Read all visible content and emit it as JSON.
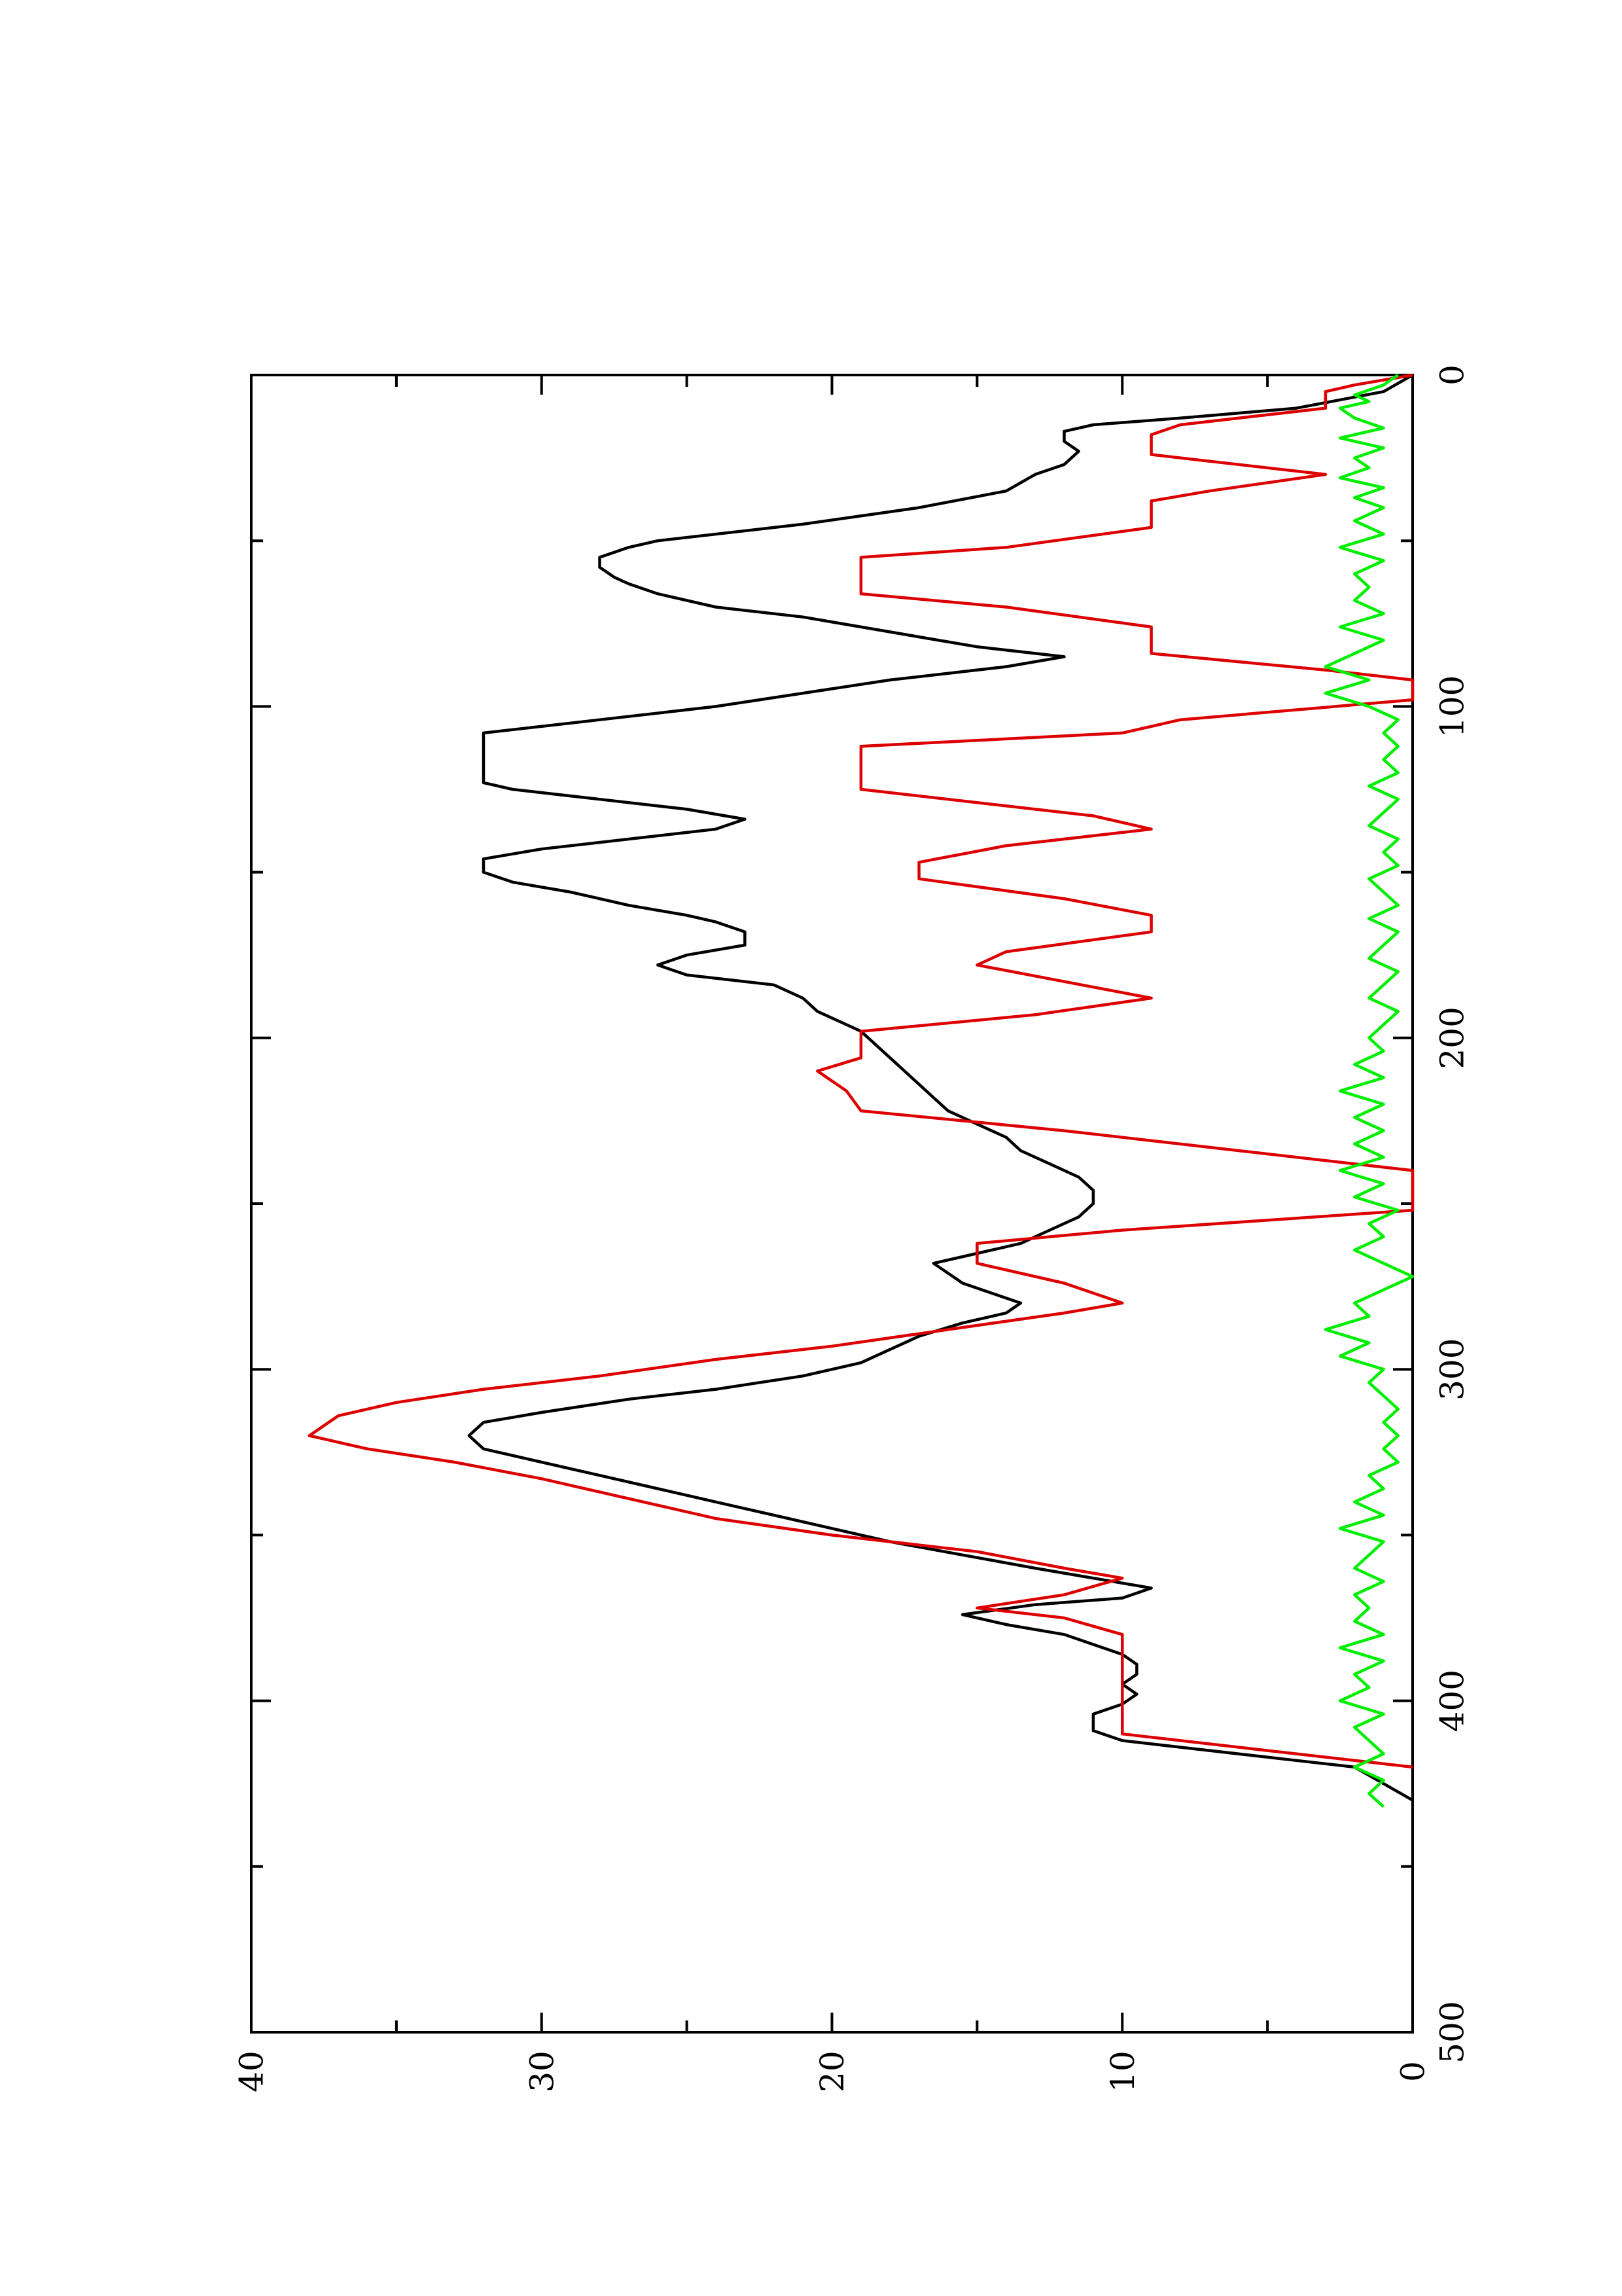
{
  "chart_data": {
    "type": "line",
    "rotated": "90-degrees-counterclockwise",
    "title": "",
    "xlabel": "",
    "ylabel": "",
    "xlim": [
      0,
      500
    ],
    "ylim": [
      0,
      40
    ],
    "x_ticks": [
      0,
      100,
      200,
      300,
      400,
      500
    ],
    "x_minor_ticks": [
      50,
      150,
      250,
      350,
      450
    ],
    "y_ticks": [
      0,
      10,
      20,
      30,
      40
    ],
    "y_minor_ticks": [
      5,
      15,
      25,
      35
    ],
    "x_tick_labels": [
      "0",
      "100",
      "200",
      "300",
      "400",
      "500"
    ],
    "y_tick_labels": [
      "0",
      "10",
      "20",
      "30",
      "40"
    ],
    "grid": false,
    "legend": "none",
    "series": [
      {
        "color": "#000000",
        "points": [
          [
            0,
            0
          ],
          [
            5,
            1
          ],
          [
            10,
            4
          ],
          [
            13,
            8
          ],
          [
            15,
            11
          ],
          [
            17,
            12
          ],
          [
            20,
            12
          ],
          [
            23,
            11.5
          ],
          [
            27,
            12
          ],
          [
            30,
            13
          ],
          [
            35,
            14
          ],
          [
            40,
            17
          ],
          [
            45,
            21
          ],
          [
            50,
            26
          ],
          [
            52,
            27
          ],
          [
            55,
            28
          ],
          [
            58,
            28
          ],
          [
            61,
            27.5
          ],
          [
            63,
            27
          ],
          [
            66,
            26
          ],
          [
            70,
            24
          ],
          [
            73,
            21
          ],
          [
            76,
            19
          ],
          [
            79,
            17
          ],
          [
            82,
            15
          ],
          [
            85,
            12
          ],
          [
            88,
            14
          ],
          [
            92,
            18
          ],
          [
            96,
            21
          ],
          [
            100,
            24
          ],
          [
            104,
            28
          ],
          [
            108,
            32
          ],
          [
            113,
            32
          ],
          [
            118,
            32
          ],
          [
            123,
            32
          ],
          [
            125,
            31
          ],
          [
            128,
            28
          ],
          [
            131,
            25
          ],
          [
            134,
            23
          ],
          [
            137,
            24
          ],
          [
            140,
            27
          ],
          [
            143,
            30
          ],
          [
            146,
            32
          ],
          [
            150,
            32
          ],
          [
            153,
            31
          ],
          [
            156,
            29
          ],
          [
            160,
            27
          ],
          [
            163,
            25
          ],
          [
            165,
            24
          ],
          [
            168,
            23
          ],
          [
            172,
            23
          ],
          [
            175,
            25
          ],
          [
            178,
            26
          ],
          [
            181,
            25
          ],
          [
            184,
            22
          ],
          [
            188,
            21
          ],
          [
            192,
            20.5
          ],
          [
            196,
            19.5
          ],
          [
            198,
            19
          ],
          [
            202,
            18.5
          ],
          [
            206,
            18
          ],
          [
            210,
            17.5
          ],
          [
            214,
            17
          ],
          [
            218,
            16.5
          ],
          [
            222,
            16
          ],
          [
            226,
            15
          ],
          [
            230,
            14
          ],
          [
            234,
            13.5
          ],
          [
            238,
            12.5
          ],
          [
            242,
            11.5
          ],
          [
            246,
            11
          ],
          [
            250,
            11
          ],
          [
            254,
            11.5
          ],
          [
            258,
            12.5
          ],
          [
            262,
            13.5
          ],
          [
            265,
            15
          ],
          [
            268,
            16.5
          ],
          [
            271,
            16
          ],
          [
            274,
            15.5
          ],
          [
            277,
            14.5
          ],
          [
            280,
            13.5
          ],
          [
            283,
            14
          ],
          [
            286,
            15.5
          ],
          [
            290,
            17
          ],
          [
            294,
            18
          ],
          [
            298,
            19
          ],
          [
            302,
            21
          ],
          [
            306,
            24
          ],
          [
            309,
            27
          ],
          [
            313,
            30
          ],
          [
            316,
            32
          ],
          [
            320,
            32.5
          ],
          [
            324,
            32
          ],
          [
            328,
            30
          ],
          [
            332,
            28
          ],
          [
            336,
            26
          ],
          [
            340,
            24
          ],
          [
            344,
            22
          ],
          [
            348,
            20
          ],
          [
            352,
            18
          ],
          [
            356,
            15.5
          ],
          [
            360,
            13
          ],
          [
            363,
            11
          ],
          [
            366,
            9
          ],
          [
            369,
            10
          ],
          [
            371,
            13
          ],
          [
            374,
            15.5
          ],
          [
            377,
            14
          ],
          [
            380,
            12
          ],
          [
            383,
            11
          ],
          [
            386,
            10
          ],
          [
            389,
            9.5
          ],
          [
            392,
            9.5
          ],
          [
            395,
            10
          ],
          [
            398,
            9.5
          ],
          [
            401,
            10
          ],
          [
            404,
            11
          ],
          [
            409,
            11
          ],
          [
            412,
            10
          ],
          [
            415,
            7
          ],
          [
            418,
            4
          ],
          [
            420,
            2
          ],
          [
            425,
            1
          ],
          [
            430,
            0
          ]
        ]
      },
      {
        "color": "#dd0000",
        "points": [
          [
            0,
            0
          ],
          [
            3,
            2
          ],
          [
            5,
            3
          ],
          [
            10,
            3
          ],
          [
            15,
            8
          ],
          [
            18,
            9
          ],
          [
            24,
            9
          ],
          [
            30,
            3
          ],
          [
            35,
            7
          ],
          [
            38,
            9
          ],
          [
            46,
            9
          ],
          [
            52,
            14
          ],
          [
            55,
            19
          ],
          [
            66,
            19
          ],
          [
            70,
            14
          ],
          [
            76,
            9
          ],
          [
            84,
            9
          ],
          [
            89,
            3
          ],
          [
            92,
            0
          ],
          [
            98,
            0
          ],
          [
            104,
            8
          ],
          [
            108,
            10
          ],
          [
            112,
            19
          ],
          [
            125,
            19
          ],
          [
            133,
            11
          ],
          [
            137,
            9
          ],
          [
            142,
            14
          ],
          [
            147,
            17
          ],
          [
            152,
            17
          ],
          [
            158,
            12
          ],
          [
            163,
            9
          ],
          [
            168,
            9
          ],
          [
            174,
            14
          ],
          [
            178,
            15
          ],
          [
            183,
            12
          ],
          [
            188,
            9
          ],
          [
            193,
            13
          ],
          [
            198,
            19
          ],
          [
            206,
            19
          ],
          [
            210,
            20.5
          ],
          [
            216,
            19.5
          ],
          [
            222,
            19
          ],
          [
            228,
            12
          ],
          [
            234,
            6
          ],
          [
            240,
            0
          ],
          [
            252,
            0
          ],
          [
            258,
            10
          ],
          [
            262,
            15
          ],
          [
            268,
            15
          ],
          [
            274,
            12
          ],
          [
            280,
            10
          ],
          [
            283,
            12
          ],
          [
            288,
            16
          ],
          [
            293,
            20
          ],
          [
            297,
            24
          ],
          [
            302,
            28
          ],
          [
            306,
            32
          ],
          [
            310,
            35
          ],
          [
            314,
            37
          ],
          [
            320,
            38
          ],
          [
            324,
            36
          ],
          [
            328,
            33
          ],
          [
            333,
            30
          ],
          [
            337,
            28
          ],
          [
            341,
            26
          ],
          [
            345,
            24
          ],
          [
            350,
            20
          ],
          [
            355,
            15
          ],
          [
            360,
            12
          ],
          [
            363,
            10
          ],
          [
            368,
            12
          ],
          [
            372,
            15
          ],
          [
            375,
            12
          ],
          [
            380,
            10
          ],
          [
            392,
            10
          ],
          [
            410,
            10
          ],
          [
            415,
            5
          ],
          [
            420,
            0
          ]
        ]
      },
      {
        "color": "#00ee00",
        "points": [
          [
            0,
            0.5
          ],
          [
            3,
            1
          ],
          [
            6,
            2
          ],
          [
            8,
            1.5
          ],
          [
            10,
            2.5
          ],
          [
            13,
            2
          ],
          [
            16,
            1
          ],
          [
            19,
            2.5
          ],
          [
            22,
            1
          ],
          [
            25,
            2
          ],
          [
            28,
            1.5
          ],
          [
            31,
            2.5
          ],
          [
            34,
            1
          ],
          [
            37,
            2
          ],
          [
            40,
            1
          ],
          [
            44,
            2
          ],
          [
            48,
            1
          ],
          [
            52,
            2.5
          ],
          [
            56,
            1
          ],
          [
            60,
            2
          ],
          [
            64,
            1.5
          ],
          [
            68,
            2
          ],
          [
            72,
            1
          ],
          [
            76,
            2.5
          ],
          [
            80,
            1
          ],
          [
            84,
            2
          ],
          [
            88,
            3
          ],
          [
            92,
            1.5
          ],
          [
            96,
            3
          ],
          [
            100,
            1.5
          ],
          [
            104,
            0.5
          ],
          [
            108,
            1
          ],
          [
            112,
            0.5
          ],
          [
            116,
            1
          ],
          [
            120,
            0.5
          ],
          [
            124,
            1.5
          ],
          [
            128,
            0.5
          ],
          [
            132,
            1
          ],
          [
            136,
            1.5
          ],
          [
            140,
            0.5
          ],
          [
            144,
            1
          ],
          [
            148,
            0.5
          ],
          [
            152,
            1.5
          ],
          [
            156,
            1
          ],
          [
            160,
            0.5
          ],
          [
            164,
            1.5
          ],
          [
            168,
            0.5
          ],
          [
            172,
            1
          ],
          [
            176,
            1.5
          ],
          [
            180,
            0.5
          ],
          [
            184,
            1
          ],
          [
            188,
            1.5
          ],
          [
            192,
            0.5
          ],
          [
            196,
            1
          ],
          [
            200,
            1.5
          ],
          [
            204,
            1
          ],
          [
            208,
            2
          ],
          [
            212,
            1
          ],
          [
            216,
            2.5
          ],
          [
            220,
            1
          ],
          [
            224,
            2
          ],
          [
            228,
            1
          ],
          [
            232,
            2
          ],
          [
            236,
            1
          ],
          [
            240,
            2.5
          ],
          [
            244,
            1
          ],
          [
            248,
            2
          ],
          [
            252,
            0.5
          ],
          [
            256,
            1.5
          ],
          [
            260,
            1
          ],
          [
            264,
            2
          ],
          [
            268,
            1
          ],
          [
            272,
            0
          ],
          [
            276,
            1
          ],
          [
            280,
            2
          ],
          [
            284,
            1.5
          ],
          [
            288,
            3
          ],
          [
            292,
            1.5
          ],
          [
            296,
            2.5
          ],
          [
            300,
            1
          ],
          [
            304,
            1.5
          ],
          [
            308,
            1
          ],
          [
            312,
            0.5
          ],
          [
            316,
            1
          ],
          [
            320,
            0.5
          ],
          [
            324,
            1
          ],
          [
            328,
            0.5
          ],
          [
            332,
            1.5
          ],
          [
            336,
            1
          ],
          [
            340,
            2
          ],
          [
            344,
            1
          ],
          [
            348,
            2.5
          ],
          [
            352,
            1
          ],
          [
            356,
            1.5
          ],
          [
            360,
            2
          ],
          [
            364,
            1
          ],
          [
            368,
            2
          ],
          [
            372,
            1.5
          ],
          [
            376,
            2
          ],
          [
            380,
            1
          ],
          [
            384,
            2.5
          ],
          [
            388,
            1
          ],
          [
            392,
            2
          ],
          [
            396,
            1.5
          ],
          [
            400,
            2.5
          ],
          [
            404,
            1
          ],
          [
            408,
            2
          ],
          [
            412,
            1.5
          ],
          [
            416,
            1
          ],
          [
            420,
            2
          ],
          [
            424,
            1
          ],
          [
            428,
            1.5
          ],
          [
            432,
            1
          ]
        ]
      }
    ]
  }
}
